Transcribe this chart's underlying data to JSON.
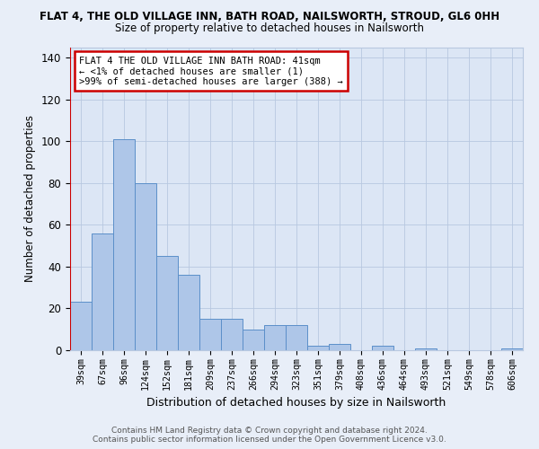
{
  "title": "FLAT 4, THE OLD VILLAGE INN, BATH ROAD, NAILSWORTH, STROUD, GL6 0HH",
  "subtitle": "Size of property relative to detached houses in Nailsworth",
  "xlabel": "Distribution of detached houses by size in Nailsworth",
  "ylabel": "Number of detached properties",
  "categories": [
    "39sqm",
    "67sqm",
    "96sqm",
    "124sqm",
    "152sqm",
    "181sqm",
    "209sqm",
    "237sqm",
    "266sqm",
    "294sqm",
    "323sqm",
    "351sqm",
    "379sqm",
    "408sqm",
    "436sqm",
    "464sqm",
    "493sqm",
    "521sqm",
    "549sqm",
    "578sqm",
    "606sqm"
  ],
  "values": [
    23,
    56,
    101,
    80,
    45,
    36,
    15,
    15,
    10,
    12,
    12,
    2,
    3,
    0,
    2,
    0,
    1,
    0,
    0,
    0,
    1
  ],
  "bar_color": "#aec6e8",
  "bar_edge_color": "#5b8fc9",
  "marker_color": "#cc0000",
  "annotation_text": "FLAT 4 THE OLD VILLAGE INN BATH ROAD: 41sqm\n← <1% of detached houses are smaller (1)\n>99% of semi-detached houses are larger (388) →",
  "annotation_box_edge": "#cc0000",
  "ylim": [
    0,
    145
  ],
  "yticks": [
    0,
    20,
    40,
    60,
    80,
    100,
    120,
    140
  ],
  "fig_background": "#e8eef8",
  "plot_background": "#dce6f5",
  "footer_line1": "Contains HM Land Registry data © Crown copyright and database right 2024.",
  "footer_line2": "Contains public sector information licensed under the Open Government Licence v3.0."
}
